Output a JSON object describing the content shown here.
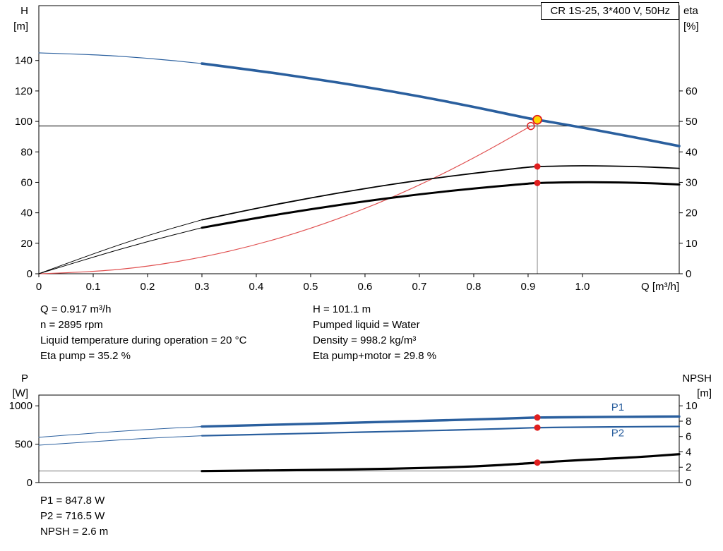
{
  "title_box": {
    "label": "CR 1S-25, 3*400 V, 50Hz"
  },
  "info_panel": {
    "left": [
      "Q = 0.917 m³/h",
      "n = 2895 rpm",
      "Liquid temperature during operation = 20 °C",
      "Eta pump = 35.2 %"
    ],
    "right": [
      "H = 101.1 m",
      "Pumped liquid = Water",
      "Density = 998.2 kg/m³",
      "Eta pump+motor = 29.8 %"
    ]
  },
  "results_panel": {
    "lines": [
      "P1 = 847.8 W",
      "P2 = 716.5 W",
      "NPSH = 2.6 m"
    ]
  },
  "colors": {
    "curve_blue": "#2a5f9e",
    "curve_black": "#000000",
    "curve_red": "#e05050",
    "marker_red": "#e01f1f",
    "duty_yellow": "#ffd500",
    "duty_line_gray": "#888888"
  },
  "chart_data": [
    {
      "type": "line",
      "x_axis": {
        "label": "Q [m³/h]",
        "min": 0,
        "max": 1.178,
        "ticks": [
          [
            0,
            "0"
          ],
          [
            0.1,
            "0.1"
          ],
          [
            0.2,
            "0.2"
          ],
          [
            0.3,
            "0.3"
          ],
          [
            0.4,
            "0.4"
          ],
          [
            0.5,
            "0.5"
          ],
          [
            0.6,
            "0.6"
          ],
          [
            0.7,
            "0.7"
          ],
          [
            0.8,
            "0.8"
          ],
          [
            0.9,
            "0.9"
          ],
          [
            1.0,
            "1.0"
          ]
        ]
      },
      "y_left": {
        "name": "H",
        "unit": "[m]",
        "min": 0,
        "max": 176,
        "ticks": [
          [
            0,
            "0"
          ],
          [
            20,
            "20"
          ],
          [
            40,
            "40"
          ],
          [
            60,
            "60"
          ],
          [
            80,
            "80"
          ],
          [
            100,
            "100"
          ],
          [
            120,
            "120"
          ],
          [
            140,
            "140"
          ]
        ]
      },
      "y_right": {
        "name": "eta",
        "unit": "[%]",
        "min": 0,
        "max": 88,
        "ticks": [
          [
            0,
            "0"
          ],
          [
            10,
            "10"
          ],
          [
            20,
            "20"
          ],
          [
            30,
            "30"
          ],
          [
            40,
            "40"
          ],
          [
            50,
            "50"
          ],
          [
            60,
            "60"
          ]
        ]
      },
      "ref_lines": [
        {
          "type": "h",
          "axis": "left",
          "value": 97,
          "color": "#000000",
          "width": 1
        },
        {
          "type": "v",
          "x": 0.917,
          "axis": "left",
          "y1": 0,
          "y2": 101.1,
          "color": "#888888",
          "width": 1
        }
      ],
      "series": [
        {
          "name": "system-curve",
          "axis": "left",
          "color": "#e05050",
          "width": 1.2,
          "x": [
            0,
            0.1,
            0.2,
            0.3,
            0.4,
            0.5,
            0.6,
            0.7,
            0.8,
            0.9,
            0.905
          ],
          "y": [
            0,
            1.2,
            4.7,
            10.7,
            18.9,
            29.6,
            42.6,
            58.0,
            75.8,
            95.9,
            97.0
          ]
        },
        {
          "name": "eta-pump-ext",
          "axis": "right",
          "color": "#000000",
          "width": 1,
          "x": [
            0,
            0.1,
            0.2,
            0.3
          ],
          "y": [
            0,
            6.6,
            12.6,
            17.7
          ]
        },
        {
          "name": "eta-pump-motor-ext",
          "axis": "right",
          "color": "#000000",
          "width": 1,
          "x": [
            0,
            0.1,
            0.2,
            0.3
          ],
          "y": [
            0,
            5.5,
            10.6,
            15.1
          ]
        },
        {
          "name": "eta-pump",
          "axis": "right",
          "color": "#000000",
          "width": 1.8,
          "x": [
            0.3,
            0.4,
            0.5,
            0.6,
            0.7,
            0.8,
            0.9,
            0.917,
            1.0,
            1.1,
            1.178
          ],
          "y": [
            17.7,
            21.5,
            24.9,
            28.0,
            30.7,
            33.0,
            35.0,
            35.2,
            35.5,
            35.2,
            34.6
          ]
        },
        {
          "name": "eta-pump-motor",
          "axis": "right",
          "color": "#000000",
          "width": 3,
          "x": [
            0.3,
            0.4,
            0.5,
            0.6,
            0.7,
            0.8,
            0.9,
            0.917,
            1.0,
            1.1,
            1.178
          ],
          "y": [
            15.1,
            18.3,
            21.2,
            23.8,
            26.1,
            28.0,
            29.6,
            29.8,
            30.1,
            29.9,
            29.3
          ]
        },
        {
          "name": "qh-curve-ext",
          "axis": "left",
          "color": "#2a5f9e",
          "width": 1.2,
          "x": [
            0,
            0.1,
            0.2,
            0.3
          ],
          "y": [
            145,
            143.9,
            141.6,
            138
          ]
        },
        {
          "name": "qh-curve",
          "axis": "left",
          "color": "#2a5f9e",
          "width": 3.6,
          "x": [
            0.3,
            0.4,
            0.5,
            0.6,
            0.7,
            0.8,
            0.9,
            0.917,
            1.0,
            1.1,
            1.178
          ],
          "y": [
            138,
            133.4,
            128.3,
            122.7,
            116.5,
            109.6,
            102.0,
            101.1,
            96.0,
            89.3,
            83.8
          ]
        }
      ],
      "markers": [
        {
          "name": "requested-duty-point",
          "x": 0.905,
          "y": 97,
          "axis": "left",
          "r": 5,
          "fill": "none",
          "stroke": "#e01f1f",
          "stroke_width": 1.5
        },
        {
          "name": "duty-point",
          "x": 0.917,
          "y": 101.1,
          "axis": "left",
          "r": 6,
          "fill": "#ffd500",
          "stroke": "#e01f1f",
          "stroke_width": 1.8
        },
        {
          "name": "eta-pump-point",
          "x": 0.917,
          "y": 35.2,
          "axis": "right",
          "r": 4.5,
          "fill": "#e01f1f",
          "stroke": "none",
          "stroke_width": 0
        },
        {
          "name": "eta-pump-motor-point",
          "x": 0.917,
          "y": 29.8,
          "axis": "right",
          "r": 4.5,
          "fill": "#e01f1f",
          "stroke": "none",
          "stroke_width": 0
        }
      ],
      "annotations": []
    },
    {
      "type": "line",
      "x_axis": {
        "label": "",
        "min": 0,
        "max": 1.178,
        "ticks": []
      },
      "y_left": {
        "name": "P",
        "unit": "[W]",
        "min": 0,
        "max": 1140,
        "ticks": [
          [
            0,
            "0"
          ],
          [
            500,
            "500"
          ],
          [
            1000,
            "1000"
          ]
        ]
      },
      "y_right": {
        "name": "NPSH",
        "unit": "[m]",
        "min": 0,
        "max": 11.4,
        "ticks": [
          [
            0,
            "0"
          ],
          [
            2,
            "2"
          ],
          [
            4,
            "4"
          ],
          [
            6,
            "6"
          ],
          [
            8,
            "8"
          ],
          [
            10,
            "10"
          ]
        ]
      },
      "ref_lines": [
        {
          "type": "h",
          "axis": "right",
          "value": 1.5,
          "color": "#777777",
          "width": 1
        }
      ],
      "series": [
        {
          "name": "p1-ext",
          "axis": "left",
          "color": "#2a5f9e",
          "width": 1,
          "x": [
            0,
            0.1,
            0.2,
            0.3
          ],
          "y": [
            590,
            645,
            692,
            730
          ]
        },
        {
          "name": "p2-ext",
          "axis": "left",
          "color": "#2a5f9e",
          "width": 1,
          "x": [
            0,
            0.1,
            0.2,
            0.3
          ],
          "y": [
            487,
            535,
            578,
            610
          ]
        },
        {
          "name": "p1-curve",
          "axis": "left",
          "color": "#2a5f9e",
          "width": 3.4,
          "x": [
            0.3,
            0.4,
            0.5,
            0.6,
            0.7,
            0.8,
            0.9,
            0.917,
            1.0,
            1.1,
            1.178
          ],
          "y": [
            730,
            748,
            766,
            784,
            803,
            822,
            844,
            847.8,
            853,
            858,
            861
          ]
        },
        {
          "name": "p2-curve",
          "axis": "left",
          "color": "#2a5f9e",
          "width": 2.2,
          "x": [
            0.3,
            0.4,
            0.5,
            0.6,
            0.7,
            0.8,
            0.9,
            0.917,
            1.0,
            1.1,
            1.178
          ],
          "y": [
            610,
            626,
            642,
            658,
            674,
            690,
            712,
            716.5,
            722,
            728,
            731
          ]
        },
        {
          "name": "npsh-curve",
          "axis": "right",
          "color": "#000000",
          "width": 3.2,
          "x": [
            0.3,
            0.4,
            0.5,
            0.6,
            0.7,
            0.8,
            0.9,
            0.917,
            1.0,
            1.1,
            1.178
          ],
          "y": [
            1.5,
            1.56,
            1.64,
            1.74,
            1.88,
            2.08,
            2.5,
            2.6,
            2.95,
            3.3,
            3.7
          ]
        }
      ],
      "markers": [
        {
          "name": "p1-point",
          "x": 0.917,
          "y": 847.8,
          "axis": "left",
          "r": 4.5,
          "fill": "#e01f1f",
          "stroke": "none",
          "stroke_width": 0
        },
        {
          "name": "p2-point",
          "x": 0.917,
          "y": 716.5,
          "axis": "left",
          "r": 4.5,
          "fill": "#e01f1f",
          "stroke": "none",
          "stroke_width": 0
        },
        {
          "name": "npsh-point",
          "x": 0.917,
          "y": 2.6,
          "axis": "right",
          "r": 4.5,
          "fill": "#e01f1f",
          "stroke": "none",
          "stroke_width": 0
        }
      ],
      "annotations": [
        {
          "text": "P1",
          "x": 1.053,
          "y": 940,
          "axis": "left",
          "color": "#2a5f9e"
        },
        {
          "text": "P2",
          "x": 1.053,
          "y": 600,
          "axis": "left",
          "color": "#2a5f9e"
        }
      ]
    }
  ]
}
